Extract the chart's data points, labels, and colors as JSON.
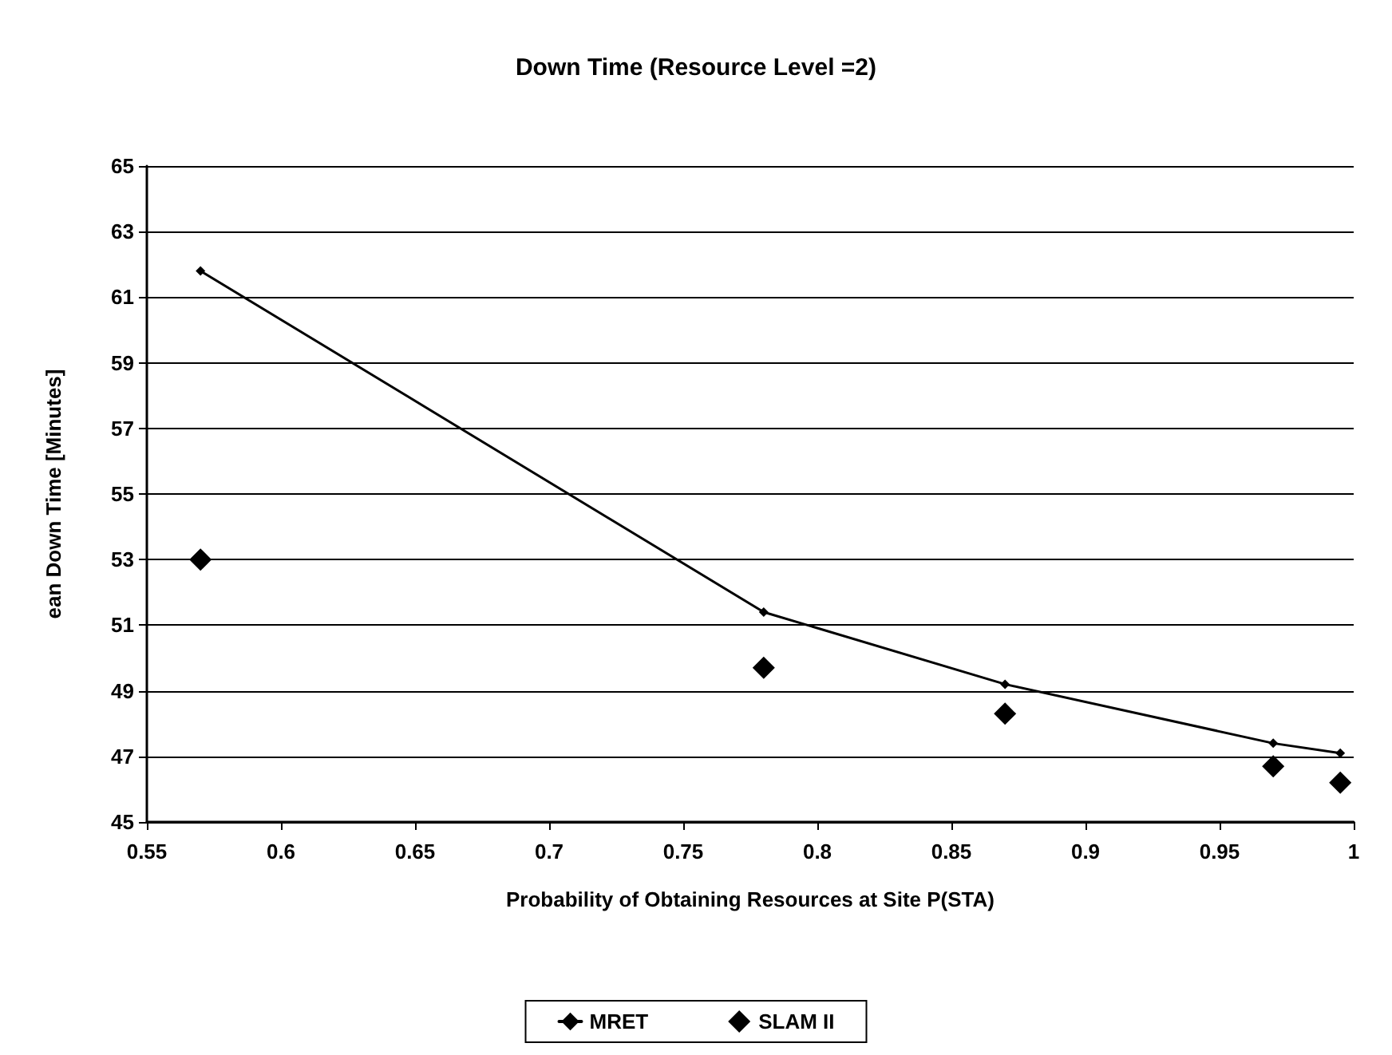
{
  "chart_data": {
    "type": "line",
    "title": "Down Time (Resource Level =2)",
    "xlabel": "Probability of Obtaining Resources at Site P(STA)",
    "ylabel": "ean Down Time [Minutes]",
    "series": [
      {
        "name": "MRET",
        "type": "line",
        "color": "#000000",
        "x": [
          0.57,
          0.78,
          0.87,
          0.97,
          0.995
        ],
        "values": [
          61.8,
          51.4,
          49.2,
          47.4,
          47.1
        ]
      },
      {
        "name": "SLAM II",
        "type": "scatter",
        "color": "#000000",
        "x": [
          0.57,
          0.78,
          0.87,
          0.97,
          0.995
        ],
        "values": [
          53.0,
          49.7,
          48.3,
          46.7,
          46.2
        ]
      }
    ],
    "xlim": [
      0.55,
      1
    ],
    "xticks": [
      0.55,
      0.6,
      0.65,
      0.7,
      0.75,
      0.8,
      0.85,
      0.9,
      0.95,
      1
    ],
    "ylim": [
      45,
      65
    ],
    "yticks": [
      45,
      47,
      49,
      51,
      53,
      55,
      57,
      59,
      61,
      63,
      65
    ],
    "grid": "y",
    "legend": "bottom",
    "marker": "diamond",
    "line_style": "solid"
  }
}
